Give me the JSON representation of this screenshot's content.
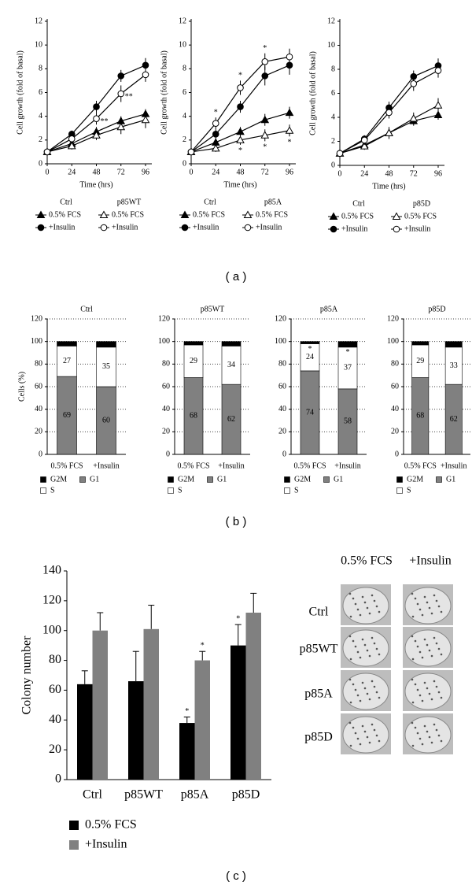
{
  "chart_data": [
    {
      "type": "line",
      "ylabel": "Cell growth (fold of basal)",
      "xlabel": "Time (hrs)",
      "x": [
        0,
        24,
        48,
        72,
        96
      ],
      "xlim": [
        0,
        96
      ],
      "xticks": [
        0,
        24,
        48,
        72,
        96
      ],
      "ylim": [
        0,
        12
      ],
      "yticks": [
        0,
        2,
        4,
        6,
        8,
        10,
        12
      ],
      "legend_titles": [
        "Ctrl",
        "p85WT"
      ],
      "series": [
        {
          "name": "0.5% FCS",
          "color": "#000000",
          "marker": "triangle",
          "filled": true,
          "values": [
            1,
            1.7,
            2.7,
            3.6,
            4.2
          ],
          "errors": [
            0,
            0.3,
            0.4,
            0.4,
            0.4
          ]
        },
        {
          "name": "+Insulin",
          "color": "#000000",
          "marker": "circle",
          "filled": true,
          "values": [
            1,
            2.5,
            4.8,
            7.4,
            8.3
          ],
          "errors": [
            0,
            0.3,
            0.5,
            0.5,
            0.6
          ]
        },
        {
          "name": "0.5% FCS",
          "color": "#000000",
          "marker": "triangle",
          "filled": false,
          "values": [
            1,
            1.5,
            2.4,
            3.1,
            3.7
          ],
          "errors": [
            0,
            0.3,
            0.4,
            0.6,
            0.7
          ]
        },
        {
          "name": "+Insulin",
          "color": "#000000",
          "marker": "circle",
          "filled": false,
          "values": [
            1,
            2.1,
            3.8,
            5.9,
            7.5
          ],
          "errors": [
            0,
            0.3,
            0.5,
            0.7,
            0.6
          ],
          "notes": [
            null,
            null,
            "**",
            "**",
            null
          ],
          "note_position": "right"
        }
      ]
    },
    {
      "type": "line",
      "xlabel": "Time (hrs)",
      "x": [
        0,
        24,
        48,
        72,
        96
      ],
      "xlim": [
        0,
        96
      ],
      "xticks": [
        0,
        24,
        48,
        72,
        96
      ],
      "ylim": [
        0,
        12
      ],
      "yticks": [
        0,
        2,
        4,
        6,
        8,
        10,
        12
      ],
      "ylabel": "Cell growth (fold of basal)",
      "legend_titles": [
        "Ctrl",
        "p85A"
      ],
      "series": [
        {
          "name": "0.5% FCS",
          "color": "#000000",
          "marker": "triangle",
          "filled": true,
          "values": [
            1,
            1.8,
            2.7,
            3.7,
            4.3
          ],
          "errors": [
            0,
            0.3,
            0.4,
            0.5,
            0.5
          ]
        },
        {
          "name": "+Insulin",
          "color": "#000000",
          "marker": "circle",
          "filled": true,
          "values": [
            1,
            2.5,
            4.8,
            7.4,
            8.3
          ],
          "errors": [
            0,
            0.4,
            0.5,
            0.8,
            0.8
          ]
        },
        {
          "name": "0.5% FCS",
          "color": "#000000",
          "marker": "triangle",
          "filled": false,
          "values": [
            1,
            1.3,
            2.0,
            2.4,
            2.8
          ],
          "errors": [
            0,
            0.3,
            0.4,
            0.5,
            0.5
          ],
          "notes": [
            null,
            null,
            "*",
            "*",
            "*"
          ],
          "note_position": "below"
        },
        {
          "name": "+Insulin",
          "color": "#000000",
          "marker": "circle",
          "filled": false,
          "values": [
            1,
            3.4,
            6.4,
            8.6,
            9.0
          ],
          "errors": [
            0,
            0.5,
            0.6,
            0.7,
            0.7
          ],
          "notes": [
            null,
            "*",
            "*",
            "*",
            null
          ],
          "note_position": "above"
        }
      ]
    },
    {
      "type": "line",
      "xlabel": "Time (hrs)",
      "x": [
        0,
        24,
        48,
        72,
        96
      ],
      "xlim": [
        0,
        96
      ],
      "xticks": [
        0,
        24,
        48,
        72,
        96
      ],
      "ylim": [
        0,
        12
      ],
      "yticks": [
        0,
        2,
        4,
        6,
        8,
        10,
        12
      ],
      "ylabel": "Cell growth (fold of basal)",
      "legend_titles": [
        "Ctrl",
        "p85D"
      ],
      "series": [
        {
          "name": "0.5% FCS",
          "color": "#000000",
          "marker": "triangle",
          "filled": true,
          "values": [
            1,
            1.7,
            2.7,
            3.7,
            4.2
          ],
          "errors": [
            0,
            0.3,
            0.4,
            0.4,
            0.4
          ]
        },
        {
          "name": "+Insulin",
          "color": "#000000",
          "marker": "circle",
          "filled": true,
          "values": [
            1,
            2.2,
            4.8,
            7.4,
            8.3
          ],
          "errors": [
            0,
            0.3,
            0.5,
            0.5,
            0.6
          ]
        },
        {
          "name": "0.5% FCS",
          "color": "#000000",
          "marker": "triangle",
          "filled": false,
          "values": [
            1,
            1.6,
            2.7,
            3.9,
            5.0
          ],
          "errors": [
            0,
            0.3,
            0.5,
            0.5,
            0.6
          ]
        },
        {
          "name": "+Insulin",
          "color": "#000000",
          "marker": "circle",
          "filled": false,
          "values": [
            1,
            2.1,
            4.4,
            6.8,
            7.9
          ],
          "errors": [
            0,
            0.4,
            0.5,
            0.6,
            0.6
          ]
        }
      ]
    },
    {
      "type": "stacked_bar",
      "title": "Ctrl",
      "ylabel": "Cells (%)",
      "categories": [
        "0.5% FCS",
        "+Insulin"
      ],
      "ylim": [
        0,
        120
      ],
      "yticks": [
        0,
        20,
        40,
        60,
        80,
        100,
        120
      ],
      "grid": true,
      "series": [
        {
          "name": "G1",
          "color": "#808080",
          "values": [
            69,
            60
          ],
          "show_values": true
        },
        {
          "name": "S",
          "color": "#ffffff",
          "values": [
            27,
            35
          ],
          "show_values": true
        },
        {
          "name": "G2M",
          "color": "#000000",
          "values": [
            4,
            5
          ],
          "show_values": false
        }
      ]
    },
    {
      "type": "stacked_bar",
      "title": "p85WT",
      "categories": [
        "0.5% FCS",
        "+Insulin"
      ],
      "ylim": [
        0,
        120
      ],
      "yticks": [
        0,
        20,
        40,
        60,
        80,
        100,
        120
      ],
      "grid": true,
      "series": [
        {
          "name": "G1",
          "color": "#808080",
          "values": [
            68,
            62
          ],
          "show_values": true
        },
        {
          "name": "S",
          "color": "#ffffff",
          "values": [
            29,
            34
          ],
          "show_values": true
        },
        {
          "name": "G2M",
          "color": "#000000",
          "values": [
            3,
            4
          ],
          "show_values": false
        }
      ]
    },
    {
      "type": "stacked_bar",
      "title": "p85A",
      "categories": [
        "0.5% FCS",
        "+Insulin"
      ],
      "ylim": [
        0,
        120
      ],
      "yticks": [
        0,
        20,
        40,
        60,
        80,
        100,
        120
      ],
      "grid": true,
      "series": [
        {
          "name": "G1",
          "color": "#808080",
          "values": [
            74,
            58
          ],
          "show_values": true
        },
        {
          "name": "S",
          "color": "#ffffff",
          "values": [
            24,
            37
          ],
          "show_values": true,
          "notes": [
            "*",
            "*"
          ]
        },
        {
          "name": "G2M",
          "color": "#000000",
          "values": [
            2,
            5
          ],
          "show_values": false
        }
      ]
    },
    {
      "type": "stacked_bar",
      "title": "p85D",
      "categories": [
        "0.5% FCS",
        "+Insulin"
      ],
      "ylim": [
        0,
        120
      ],
      "yticks": [
        0,
        20,
        40,
        60,
        80,
        100,
        120
      ],
      "grid": true,
      "series": [
        {
          "name": "G1",
          "color": "#808080",
          "values": [
            68,
            62
          ],
          "show_values": true
        },
        {
          "name": "S",
          "color": "#ffffff",
          "values": [
            29,
            33
          ],
          "show_values": true
        },
        {
          "name": "G2M",
          "color": "#000000",
          "values": [
            3,
            5
          ],
          "show_values": false
        }
      ]
    },
    {
      "type": "grouped_bar",
      "ylabel": "Colony number",
      "categories": [
        "Ctrl",
        "p85WT",
        "p85A",
        "p85D"
      ],
      "ylim": [
        0,
        140
      ],
      "yticks": [
        0,
        20,
        40,
        60,
        80,
        100,
        120,
        140
      ],
      "series": [
        {
          "name": "0.5% FCS",
          "color": "#000000",
          "values": [
            64,
            66,
            38,
            90
          ],
          "errors": [
            9,
            20,
            4,
            14
          ],
          "notes": [
            null,
            null,
            "*",
            "*"
          ]
        },
        {
          "name": "+Insulin",
          "color": "#808080",
          "values": [
            100,
            101,
            80,
            112
          ],
          "errors": [
            12,
            16,
            6,
            13
          ],
          "notes": [
            null,
            null,
            "*",
            null
          ]
        }
      ]
    }
  ],
  "panel_labels": [
    "( a )",
    "( b )",
    "( c )"
  ],
  "image_panel": {
    "columns": [
      "0.5% FCS",
      "+Insulin"
    ],
    "rows": [
      "Ctrl",
      "p85WT",
      "p85A",
      "p85D"
    ]
  }
}
